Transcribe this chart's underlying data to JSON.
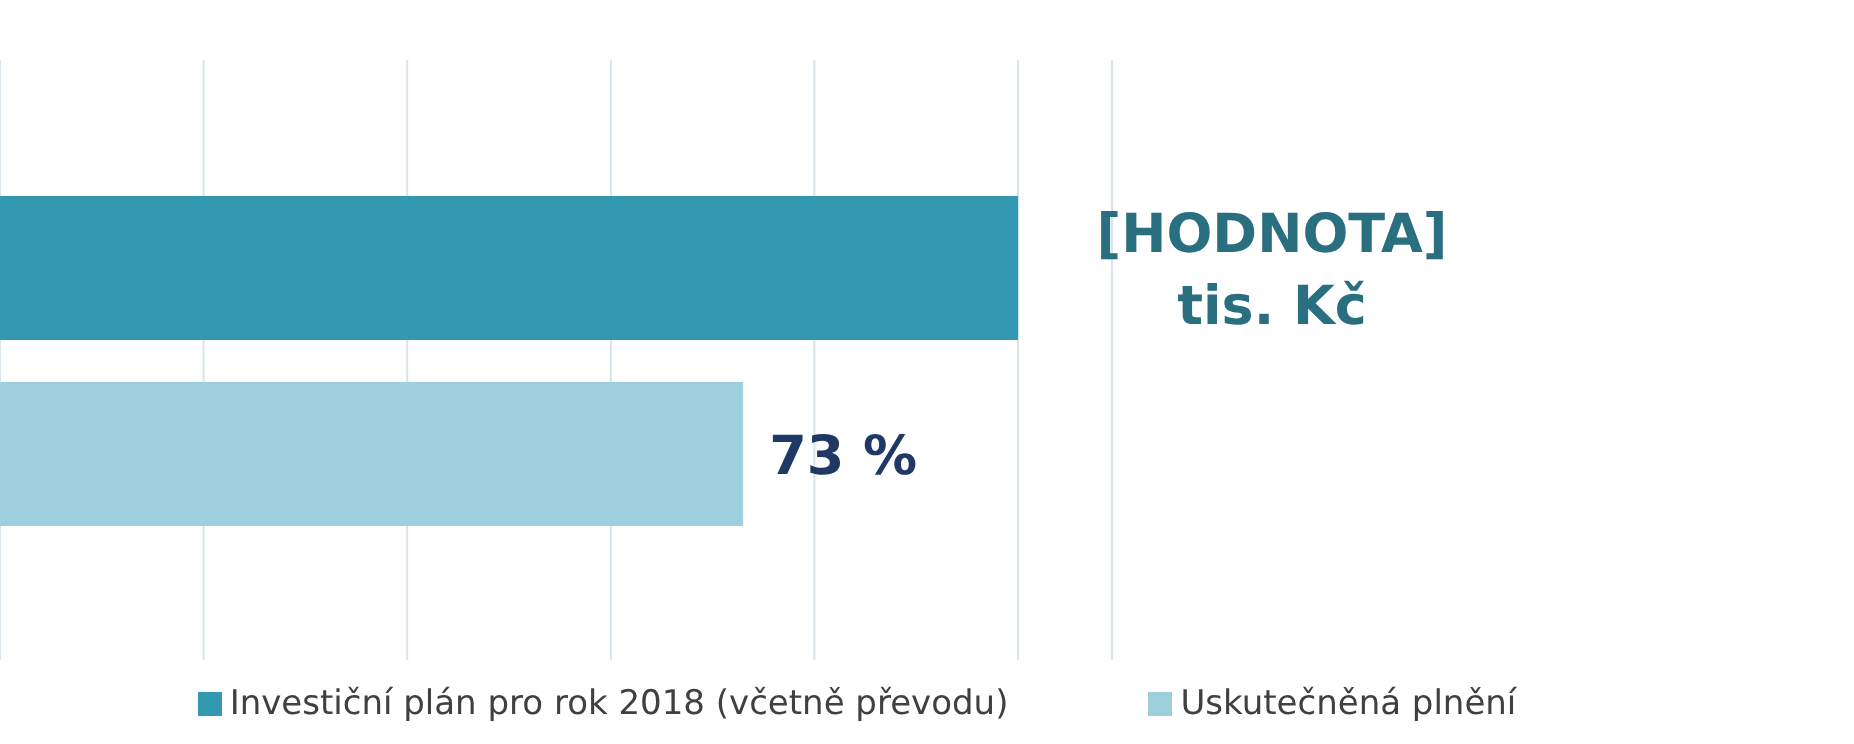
{
  "chart_data": {
    "type": "bar",
    "orientation": "horizontal",
    "tick_labels": false,
    "categories": [
      null
    ],
    "series": [
      {
        "name": "Investiční plán pro rok 2018 (včetně převodu)",
        "color": "#3399b0",
        "values": [
          100
        ],
        "value_labels": [
          "[HODNOTA]\ntis. Kč"
        ]
      },
      {
        "name": "Uskutečněná plnění",
        "color": "#9dcfdc",
        "values": [
          73
        ],
        "value_labels": [
          "73 %"
        ]
      }
    ],
    "grid": "x",
    "legend": "bottom"
  }
}
